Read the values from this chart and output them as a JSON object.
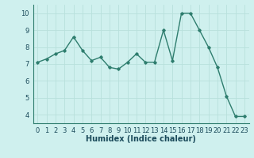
{
  "x": [
    0,
    1,
    2,
    3,
    4,
    5,
    6,
    7,
    8,
    9,
    10,
    11,
    12,
    13,
    14,
    15,
    16,
    17,
    18,
    19,
    20,
    21,
    22,
    23
  ],
  "y": [
    7.1,
    7.3,
    7.6,
    7.8,
    8.6,
    7.8,
    7.2,
    7.4,
    6.8,
    6.7,
    7.1,
    7.6,
    7.1,
    7.1,
    9.0,
    7.2,
    10.0,
    10.0,
    9.0,
    8.0,
    6.8,
    5.1,
    3.9,
    3.9
  ],
  "xlabel": "Humidex (Indice chaleur)",
  "ylim": [
    3.5,
    10.5
  ],
  "xlim": [
    -0.5,
    23.5
  ],
  "yticks": [
    4,
    5,
    6,
    7,
    8,
    9,
    10
  ],
  "xticks": [
    0,
    1,
    2,
    3,
    4,
    5,
    6,
    7,
    8,
    9,
    10,
    11,
    12,
    13,
    14,
    15,
    16,
    17,
    18,
    19,
    20,
    21,
    22,
    23
  ],
  "line_color": "#2e7d6e",
  "marker": "D",
  "marker_size": 1.8,
  "line_width": 1.0,
  "bg_color": "#cff0ee",
  "grid_color": "#b8e0dc",
  "xlabel_fontsize": 7,
  "tick_fontsize": 6,
  "xlabel_color": "#1a4a5a",
  "tick_color": "#1a4a5a"
}
